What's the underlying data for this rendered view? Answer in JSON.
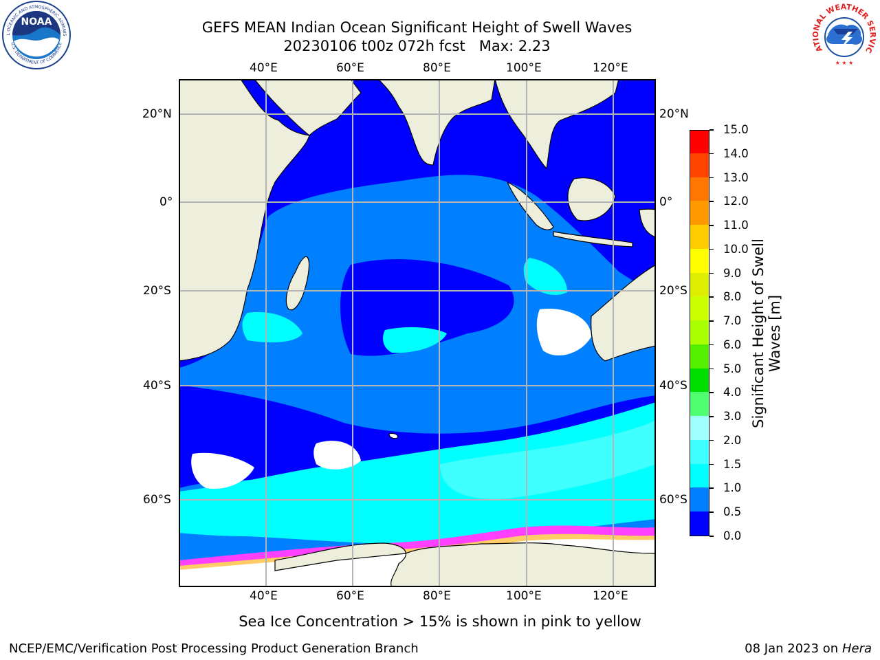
{
  "title": {
    "line1": "GEFS MEAN Indian Ocean Significant Height of Swell Waves",
    "line2": "20230106 t00z 072h fcst   Max: 2.23"
  },
  "map": {
    "lon_labels": [
      "40°E",
      "60°E",
      "80°E",
      "100°E",
      "120°E"
    ],
    "lat_labels": [
      "20°N",
      "0°",
      "20°S",
      "40°S",
      "60°S"
    ],
    "colors": {
      "land": "#eeeedc",
      "coast": "#000000",
      "grid": "#b4b4b4",
      "frame": "#000000"
    }
  },
  "colorbar": {
    "label_line1": "Significant Height of Swell",
    "label_line2": "Waves [m]",
    "ticks": [
      "0.0",
      "0.5",
      "1.0",
      "1.5",
      "2.0",
      "3.0",
      "4.0",
      "5.0",
      "6.0",
      "7.0",
      "8.0",
      "9.0",
      "10.0",
      "11.0",
      "12.0",
      "13.0",
      "14.0",
      "15.0"
    ],
    "colors": [
      "#0000ff",
      "#0080ff",
      "#00ffff",
      "#40ffff",
      "#a0ffff",
      "#50ff70",
      "#00dd00",
      "#55ee00",
      "#aaff00",
      "#ccff00",
      "#ddee00",
      "#ffff00",
      "#ffcc00",
      "#ff9900",
      "#ff7700",
      "#ff4400",
      "#ff0000"
    ]
  },
  "caption": "Sea Ice Concentration > 15% is shown in pink to yellow",
  "footer": {
    "left": "NCEP/EMC/Verification Post Processing Product Generation Branch",
    "date": "08 Jan 2023 on ",
    "machine": "Hera"
  },
  "logos": {
    "noaa_text": "NOAA",
    "noaa_ring": "NATIONAL OCEANIC AND ATMOSPHERIC ADMINISTRATION",
    "noaa_ring_bottom": "U.S. DEPARTMENT OF COMMERCE",
    "nws_ring": "NATIONAL WEATHER SERVICE"
  }
}
